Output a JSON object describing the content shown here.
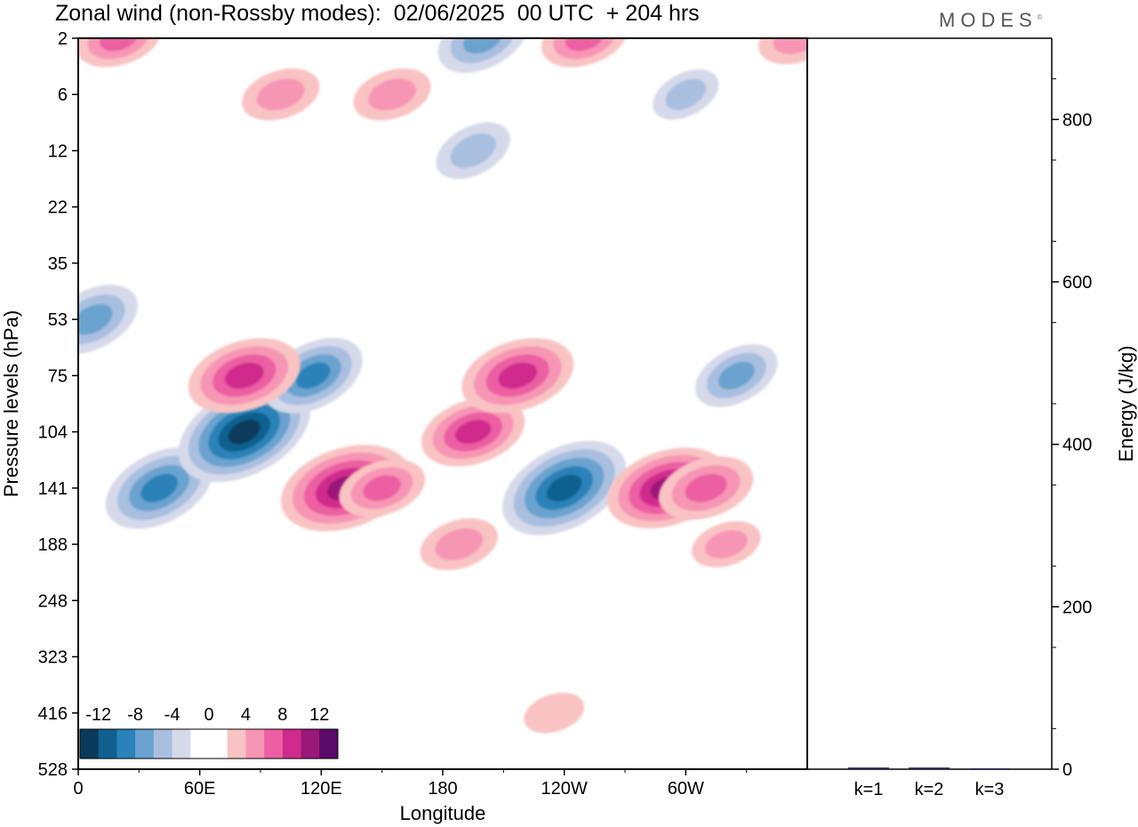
{
  "title": "Zonal wind (non-Rossby modes):  02/06/2025  00 UTC  + 204 hrs",
  "logo": "MODES",
  "chart_data": [
    {
      "type": "heatmap",
      "title": "Zonal wind (non-Rossby modes):  02/06/2025  00 UTC  + 204 hrs",
      "xlabel": "Longitude",
      "ylabel": "Pressure levels (hPa)",
      "x_ticks": [
        "0",
        "60E",
        "120E",
        "180",
        "120W",
        "60W"
      ],
      "x_tick_degrees": [
        0,
        60,
        120,
        180,
        240,
        300
      ],
      "xlim": [
        0,
        360
      ],
      "y_ticks": [
        "2",
        "6",
        "12",
        "22",
        "35",
        "53",
        "75",
        "104",
        "141",
        "188",
        "248",
        "323",
        "416",
        "528"
      ],
      "colorbar": {
        "labels": [
          "-12",
          "-8",
          "-4",
          "0",
          "4",
          "8",
          "12"
        ],
        "levels": [
          -14,
          -12,
          -10,
          -8,
          -6,
          -4,
          -2,
          0,
          2,
          4,
          6,
          8,
          10,
          12,
          14
        ],
        "colors": [
          "#0a3a5c",
          "#10608f",
          "#2a82b8",
          "#6aa3cf",
          "#a9bfe0",
          "#d6d9ea",
          "#ffffff",
          "#ffffff",
          "#f9c3c3",
          "#f795b5",
          "#ec5fa2",
          "#cf2a8c",
          "#9a1877",
          "#5a0a6a"
        ]
      },
      "features": [
        {
          "lon": 40,
          "level": "141",
          "value": -9
        },
        {
          "lon": 82,
          "level": "104",
          "value": -12
        },
        {
          "lon": 116,
          "level": "75",
          "value": -8
        },
        {
          "lon": 240,
          "level": "141",
          "value": -11
        },
        {
          "lon": 325,
          "level": "75",
          "value": -6
        },
        {
          "lon": 7,
          "level": "53",
          "value": -7
        },
        {
          "lon": 132,
          "level": "141",
          "value": 11
        },
        {
          "lon": 150,
          "level": "141",
          "value": 6
        },
        {
          "lon": 195,
          "level": "104",
          "value": 8
        },
        {
          "lon": 217,
          "level": "75",
          "value": 9
        },
        {
          "lon": 291,
          "level": "141",
          "value": 10
        },
        {
          "lon": 310,
          "level": "141",
          "value": 7
        },
        {
          "lon": 82,
          "level": "75",
          "value": 9
        },
        {
          "lon": 188,
          "level": "188",
          "value": 5
        },
        {
          "lon": 320,
          "level": "188",
          "value": 4
        },
        {
          "lon": 235,
          "level": "416",
          "value": 3
        },
        {
          "lon": 200,
          "level": "2",
          "value": -7
        },
        {
          "lon": 250,
          "level": "2",
          "value": 6
        },
        {
          "lon": 20,
          "level": "2",
          "value": 6
        },
        {
          "lon": 100,
          "level": "6",
          "value": 5
        },
        {
          "lon": 155,
          "level": "6",
          "value": 5
        },
        {
          "lon": 195,
          "level": "12",
          "value": -5
        },
        {
          "lon": 300,
          "level": "6",
          "value": -4
        },
        {
          "lon": 355,
          "level": "2",
          "value": 5
        }
      ]
    },
    {
      "type": "bar",
      "ylabel": "Energy (J/kg)",
      "categories": [
        "k=1",
        "k=2",
        "k=3"
      ],
      "values": [
        2,
        2,
        1
      ],
      "ylim": [
        0,
        900
      ],
      "y_ticks": [
        "0",
        "200",
        "400",
        "600",
        "800"
      ]
    }
  ]
}
